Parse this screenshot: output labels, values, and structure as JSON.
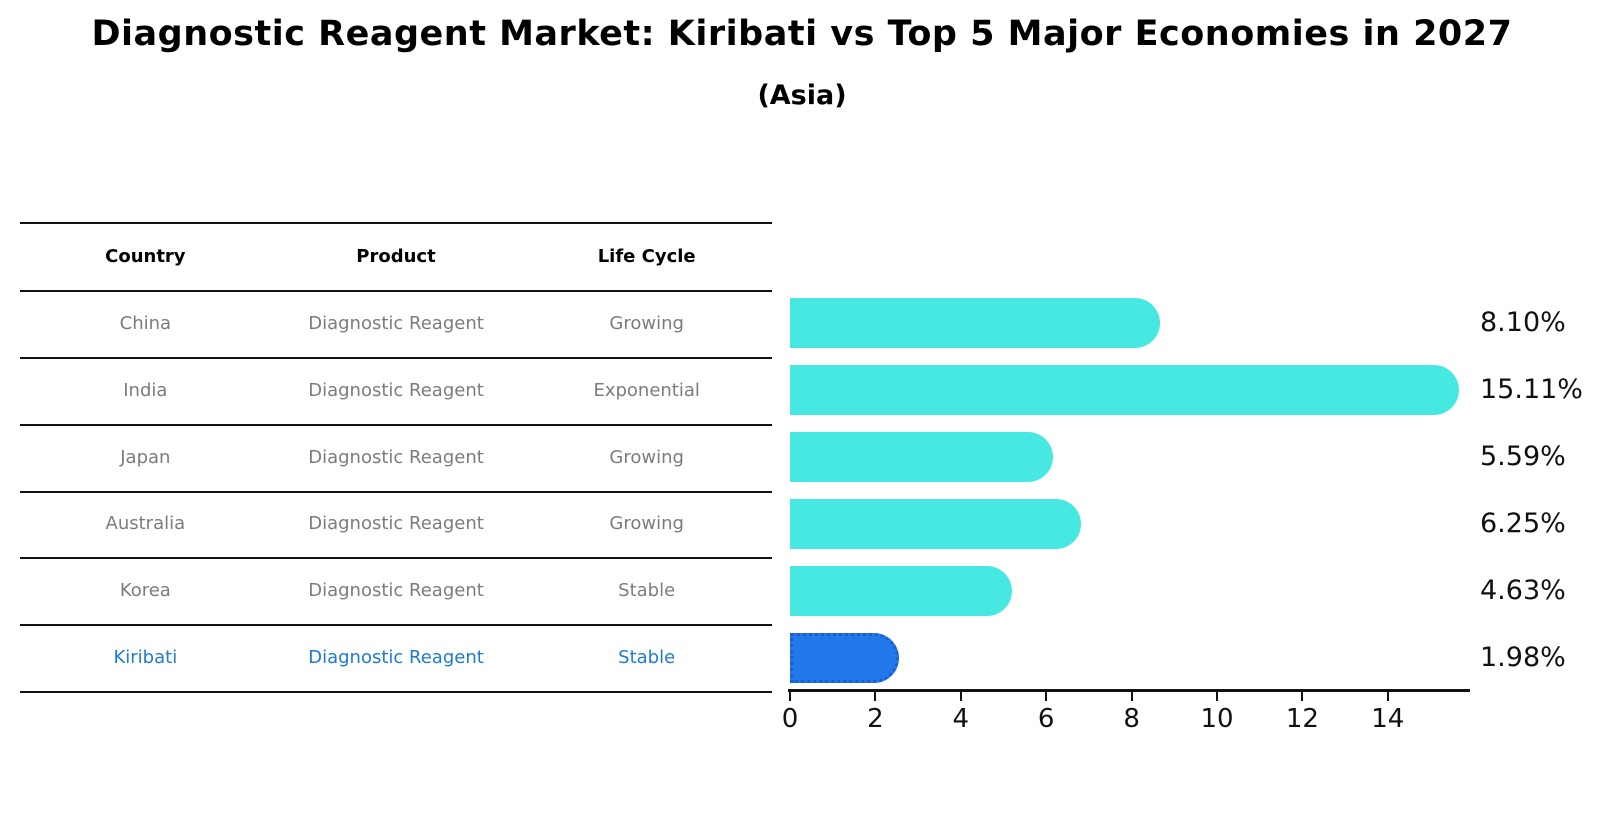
{
  "title": "Diagnostic Reagent Market: Kiribati vs Top 5 Major Economies in 2027",
  "subtitle": "(Asia)",
  "table": {
    "headers": [
      "Country",
      "Product",
      "Life Cycle"
    ],
    "rows": [
      {
        "country": "China",
        "product": "Diagnostic Reagent",
        "life_cycle": "Growing",
        "highlight": false
      },
      {
        "country": "India",
        "product": "Diagnostic Reagent",
        "life_cycle": "Exponential",
        "highlight": false
      },
      {
        "country": "Japan",
        "product": "Diagnostic Reagent",
        "life_cycle": "Growing",
        "highlight": false
      },
      {
        "country": "Australia",
        "product": "Diagnostic Reagent",
        "life_cycle": "Growing",
        "highlight": false
      },
      {
        "country": "Korea",
        "product": "Diagnostic Reagent",
        "life_cycle": "Stable",
        "highlight": false
      },
      {
        "country": "Kiribati",
        "product": "Diagnostic Reagent",
        "life_cycle": "Stable",
        "highlight": true
      }
    ]
  },
  "chart_data": {
    "type": "bar",
    "orientation": "horizontal",
    "title": "Diagnostic Reagent Market: Kiribati vs Top 5 Major Economies in 2027",
    "subtitle": "(Asia)",
    "categories": [
      "China",
      "India",
      "Japan",
      "Australia",
      "Korea",
      "Kiribati"
    ],
    "values": [
      8.1,
      15.11,
      5.59,
      6.25,
      4.63,
      1.98
    ],
    "value_labels": [
      "8.10%",
      "15.11%",
      "5.59%",
      "6.25%",
      "4.63%",
      "1.98%"
    ],
    "highlight_index": 5,
    "xlabel": "",
    "ylabel": "",
    "xlim": [
      0,
      15.9
    ],
    "x_ticks": [
      0,
      2,
      4,
      6,
      8,
      10,
      12,
      14
    ],
    "grid": false,
    "legend": false
  },
  "colors": {
    "bar_fill": "#48E8E2",
    "highlight_bar_fill": "#2278E8",
    "highlight_bar_border": "#1A5FD0",
    "highlight_text": "#1E7AD4",
    "table_text": "#7c7c7c",
    "header_text": "#000000",
    "line": "#111111"
  }
}
